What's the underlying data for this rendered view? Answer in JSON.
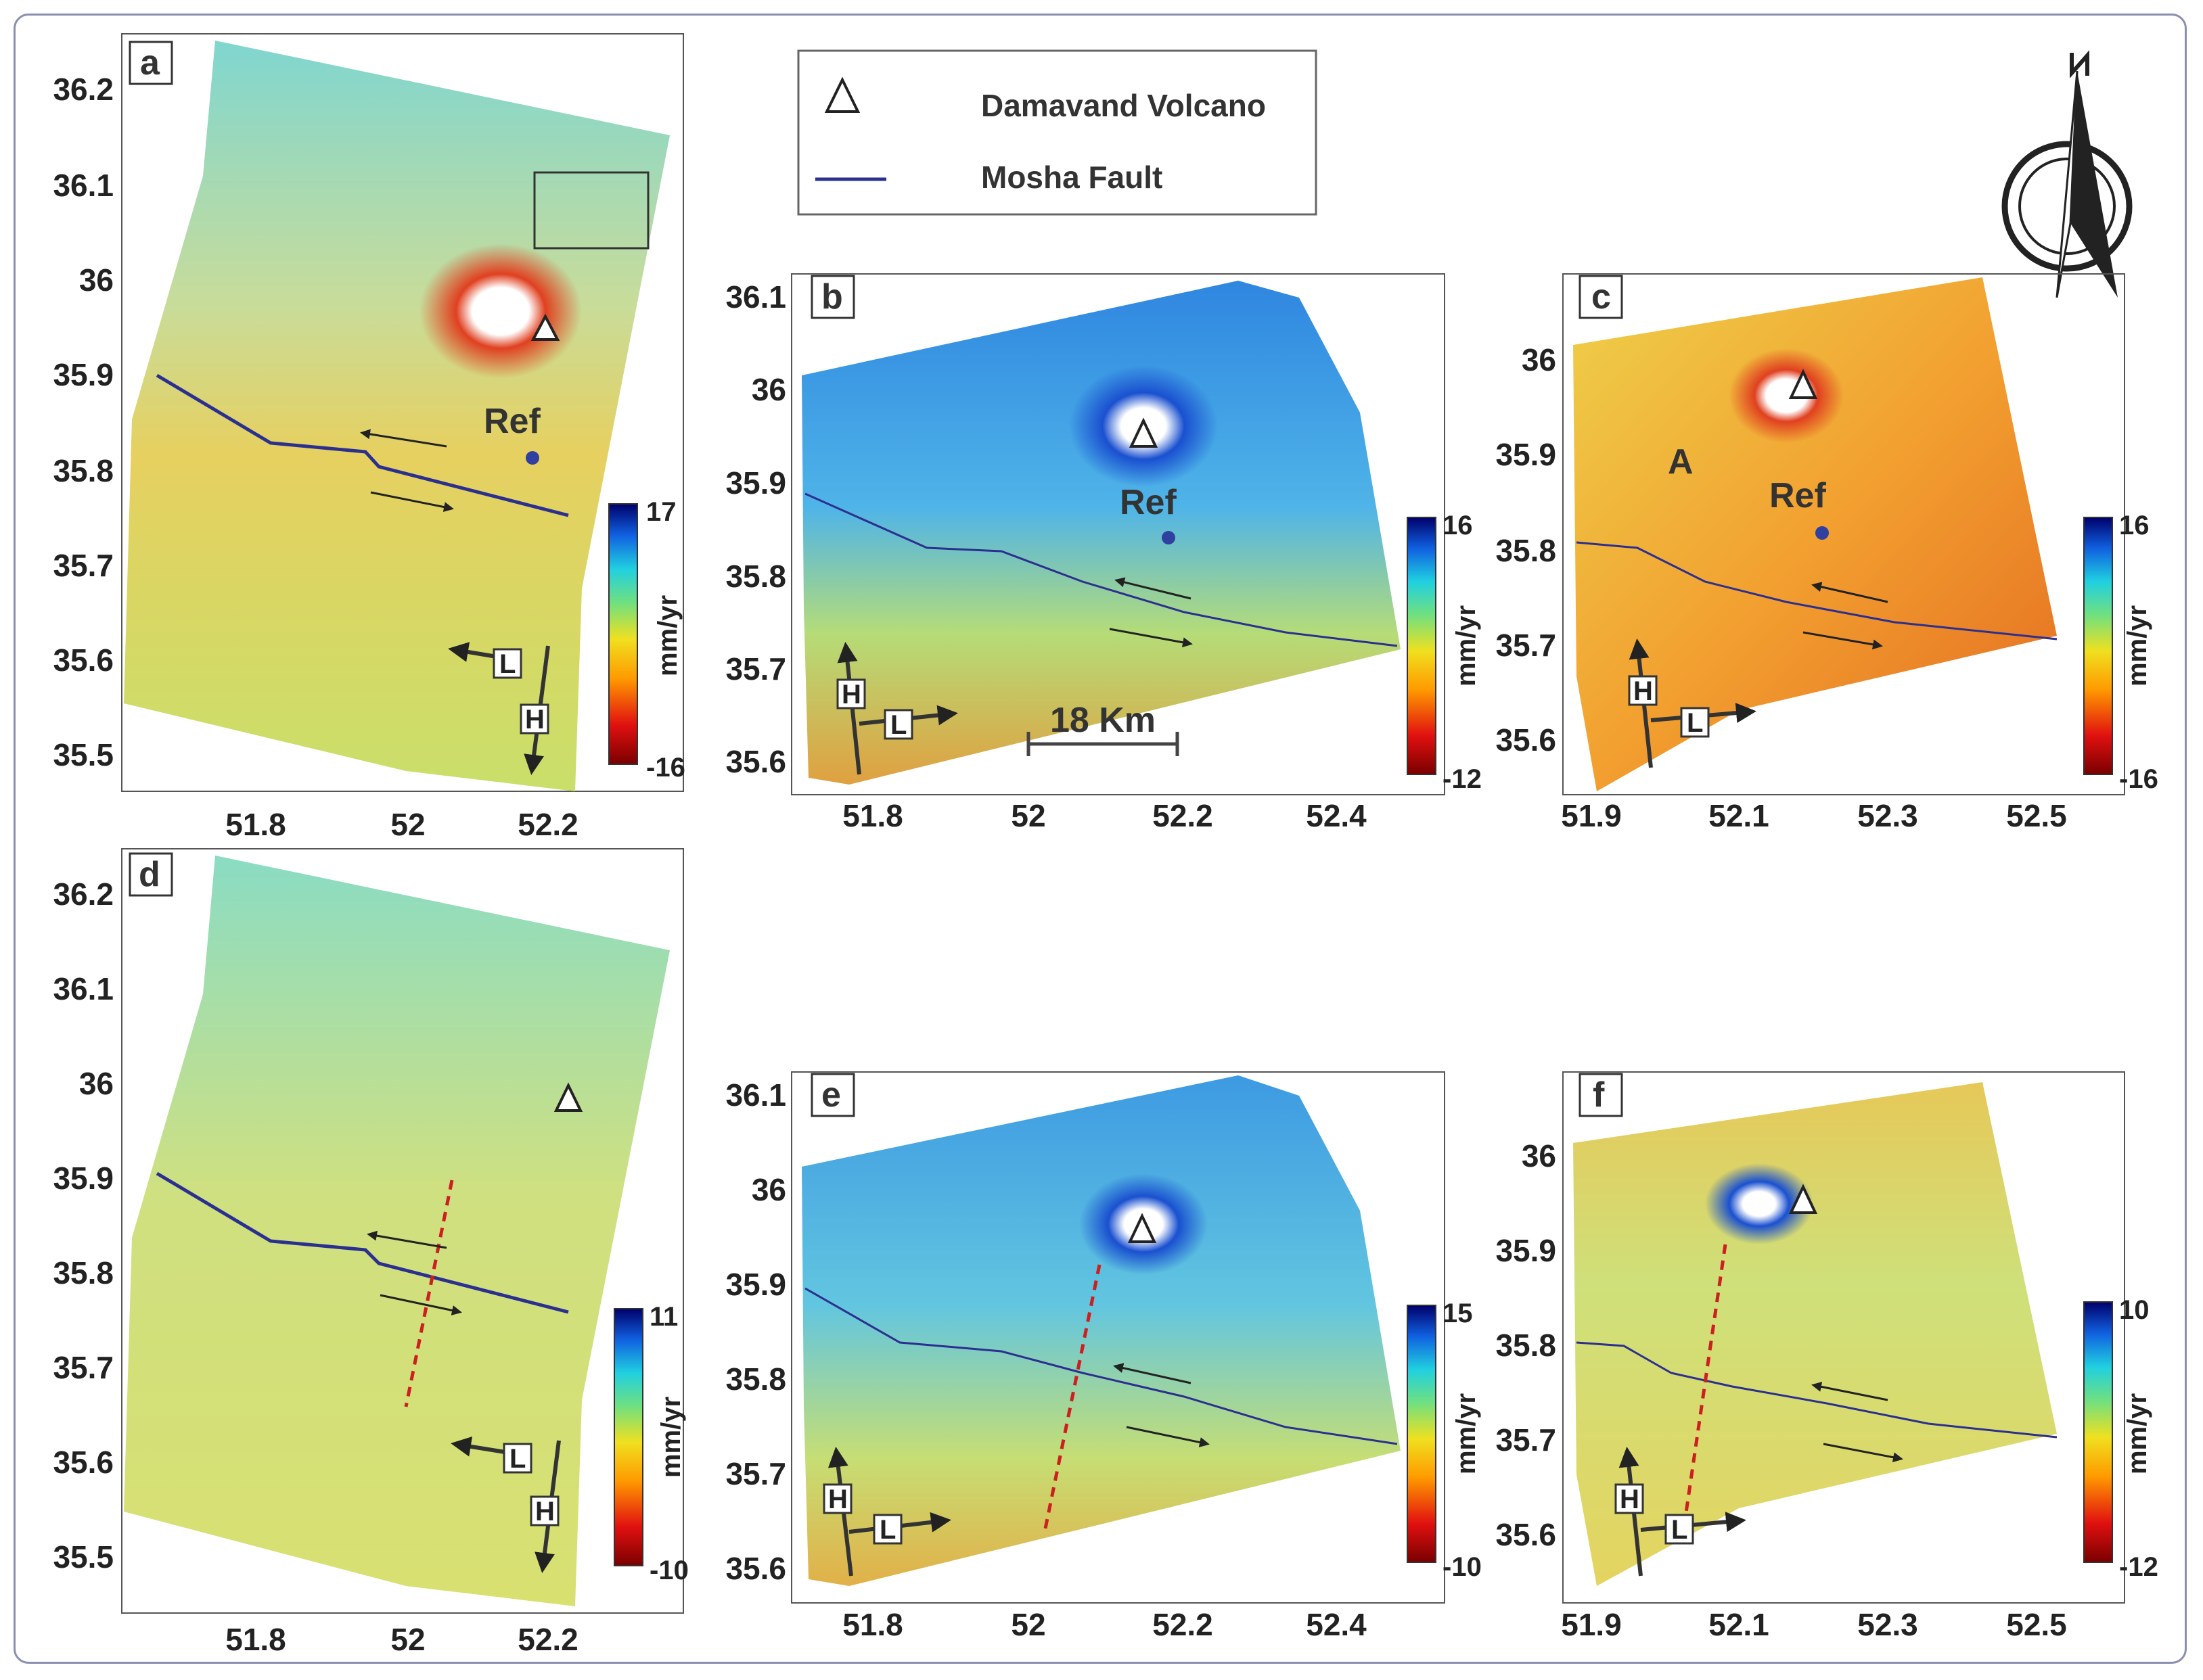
{
  "legend": {
    "volcano_label": "Damavand Volcano",
    "fault_label": "Mosha Fault",
    "fault_color": "#2b2f8f"
  },
  "scale_bar": "18 Km",
  "colorbar_unit": "mm/yr",
  "heading_labels": {
    "h": "H",
    "l": "L"
  },
  "ref_label": "Ref",
  "area_label": "A",
  "panels": [
    {
      "id": "a",
      "cbar_max": "17",
      "cbar_min": "-16",
      "xticks": [
        "51.8",
        "52",
        "52.2"
      ],
      "yticks": [
        "36.2",
        "36.1",
        "36",
        "35.9",
        "35.8",
        "35.7",
        "35.6",
        "35.5"
      ]
    },
    {
      "id": "b",
      "cbar_max": "16",
      "cbar_min": "-12",
      "xticks": [
        "51.8",
        "52",
        "52.2",
        "52.4"
      ],
      "yticks": [
        "36.1",
        "36",
        "35.9",
        "35.8",
        "35.7",
        "35.6"
      ]
    },
    {
      "id": "c",
      "cbar_max": "16",
      "cbar_min": "-16",
      "xticks": [
        "51.9",
        "52.1",
        "52.3",
        "52.5"
      ],
      "yticks": [
        "36",
        "35.9",
        "35.8",
        "35.7",
        "35.6"
      ]
    },
    {
      "id": "d",
      "cbar_max": "11",
      "cbar_min": "-10",
      "xticks": [
        "51.8",
        "52",
        "52.2"
      ],
      "yticks": [
        "36.2",
        "36.1",
        "36",
        "35.9",
        "35.8",
        "35.7",
        "35.6",
        "35.5"
      ]
    },
    {
      "id": "e",
      "cbar_max": "15",
      "cbar_min": "-10",
      "xticks": [
        "51.8",
        "52",
        "52.2",
        "52.4"
      ],
      "yticks": [
        "36.1",
        "36",
        "35.9",
        "35.8",
        "35.7",
        "35.6"
      ]
    },
    {
      "id": "f",
      "cbar_max": "10",
      "cbar_min": "-12",
      "xticks": [
        "51.9",
        "52.1",
        "52.3",
        "52.5"
      ],
      "yticks": [
        "36",
        "35.9",
        "35.8",
        "35.7",
        "35.6"
      ]
    }
  ]
}
